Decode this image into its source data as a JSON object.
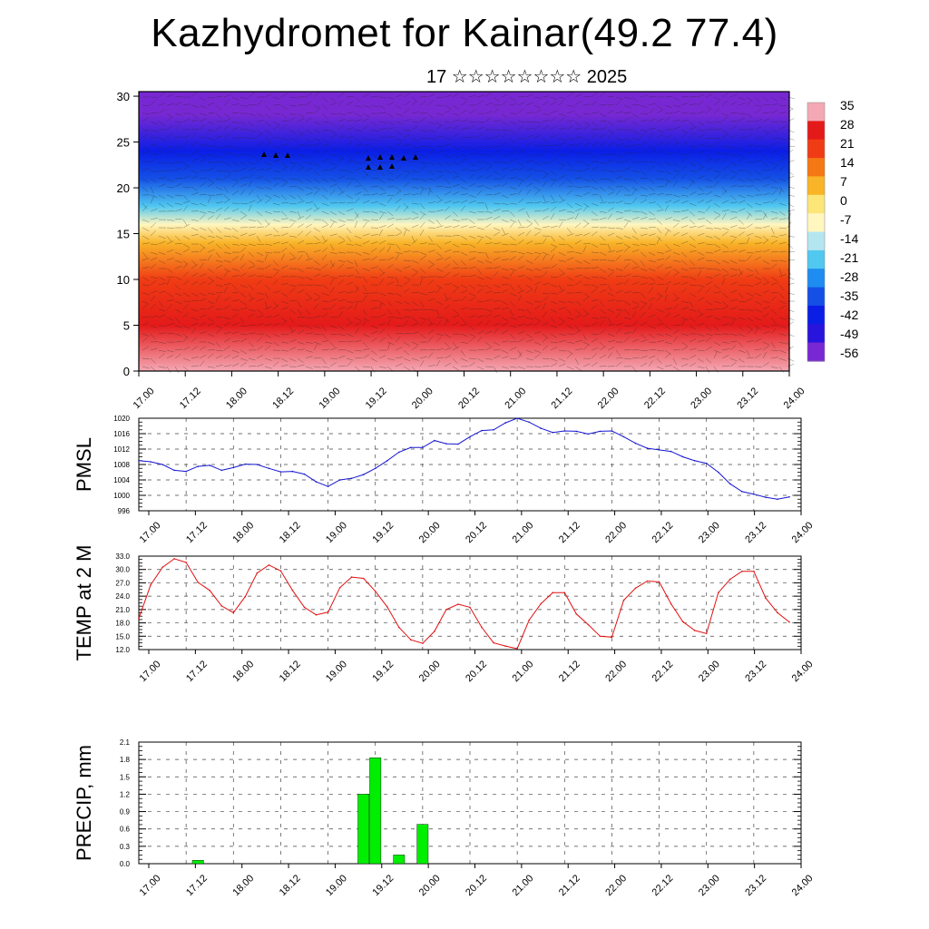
{
  "title": "Kazhydromet for Kainar(49.2 77.4)",
  "subtitle": "17 ☆☆☆☆☆☆☆☆ 2025",
  "colors": {
    "pmsl_line": "#1515d0",
    "temp_line": "#e01010",
    "precip_bar": "#00ee00"
  },
  "chart_data": [
    {
      "type": "heatmap",
      "title": "",
      "xlabel": "",
      "ylabel": "",
      "x_tick_labels": [
        "17.00",
        "17.12",
        "18.00",
        "18.12",
        "19.00",
        "19.12",
        "20.00",
        "20.12",
        "21.00",
        "21.12",
        "22.00",
        "22.12",
        "23.00",
        "23.12",
        "24.00"
      ],
      "y_ticks": [
        0,
        5,
        10,
        15,
        20,
        25,
        30
      ],
      "ylim": [
        0,
        30.5
      ],
      "colorbar_labels": [
        "35",
        "28",
        "21",
        "14",
        "7",
        "0",
        "-7",
        "-14",
        "-21",
        "-28",
        "-35",
        "-42",
        "-49",
        "-56"
      ],
      "colorbar_stops": [
        "#f4a8b4",
        "#e41a1a",
        "#f03c14",
        "#f57814",
        "#f9b428",
        "#fce678",
        "#fff6c0",
        "#b4e6f0",
        "#50c8f0",
        "#1e8cf0",
        "#1450e6",
        "#0a1ee6",
        "#2814dc",
        "#7828d2"
      ],
      "field_profile": [
        {
          "level": 0,
          "value": 32
        },
        {
          "level": 5,
          "value": 28
        },
        {
          "level": 10,
          "value": 20
        },
        {
          "level": 14,
          "value": 6
        },
        {
          "level": 16,
          "value": -8
        },
        {
          "level": 18,
          "value": -20
        },
        {
          "level": 21,
          "value": -35
        },
        {
          "level": 24,
          "value": -48
        },
        {
          "level": 28,
          "value": -58
        }
      ],
      "overlay": "wind barbs"
    },
    {
      "type": "line",
      "ylabel": "PMSL",
      "y_ticks": [
        "996",
        "1000",
        "1004",
        "1008",
        "1012",
        "1016",
        "1020"
      ],
      "ylim": [
        996,
        1020
      ],
      "x_tick_labels": [
        "17.00",
        "17.12",
        "18.00",
        "18.12",
        "19.00",
        "19.12",
        "20.00",
        "20.12",
        "21.00",
        "21.12",
        "22.00",
        "22.12",
        "23.00",
        "23.12",
        "24.00"
      ],
      "x_range": [
        0,
        168
      ],
      "series": [
        {
          "x": [
            0,
            3,
            6,
            9,
            12,
            15,
            18,
            21,
            24,
            27,
            30,
            33,
            36,
            39,
            42,
            45,
            48,
            51,
            54,
            57,
            60,
            63,
            66,
            69,
            72,
            75,
            78,
            81,
            84,
            87,
            90,
            93,
            96,
            99,
            102,
            105,
            108,
            111,
            114,
            117,
            120,
            123,
            126,
            129,
            132,
            135,
            138,
            141,
            144,
            147,
            150,
            153,
            156,
            159,
            162,
            165
          ],
          "values": [
            1009,
            1008.7,
            1008,
            1006.5,
            1006.2,
            1007.5,
            1007.8,
            1006.5,
            1007.2,
            1008.1,
            1008,
            1007,
            1006.1,
            1006.2,
            1005.5,
            1003.5,
            1002.3,
            1004,
            1004.4,
            1005.4,
            1007,
            1009,
            1011.2,
            1012.4,
            1012.4,
            1014.2,
            1013.4,
            1013.3,
            1015.2,
            1016.8,
            1017,
            1018.8,
            1020,
            1019,
            1017.4,
            1016.3,
            1016.7,
            1016.6,
            1015.9,
            1016.6,
            1016.7,
            1015.2,
            1013.5,
            1012.2,
            1011.8,
            1011.4,
            1010,
            1009,
            1008.3,
            1006,
            1003,
            1001,
            1000.3,
            999.5,
            999,
            999.6
          ]
        }
      ]
    },
    {
      "type": "line",
      "ylabel": "TEMP at 2 M",
      "y_ticks": [
        "12.0",
        "15.0",
        "18.0",
        "21.0",
        "24.0",
        "27.0",
        "30.0",
        "33.0"
      ],
      "ylim": [
        12,
        33
      ],
      "x_tick_labels": [
        "17.00",
        "17.12",
        "18.00",
        "18.12",
        "19.00",
        "19.12",
        "20.00",
        "20.12",
        "21.00",
        "21.12",
        "22.00",
        "22.12",
        "23.00",
        "23.12",
        "24.00"
      ],
      "x_range": [
        0,
        168
      ],
      "series": [
        {
          "x": [
            0,
            3,
            6,
            9,
            12,
            15,
            18,
            21,
            24,
            27,
            30,
            33,
            36,
            39,
            42,
            45,
            48,
            51,
            54,
            57,
            60,
            63,
            66,
            69,
            72,
            75,
            78,
            81,
            84,
            87,
            90,
            93,
            96,
            99,
            102,
            105,
            108,
            111,
            114,
            117,
            120,
            123,
            126,
            129,
            132,
            135,
            138,
            141,
            144,
            147,
            150,
            153,
            156,
            159,
            162,
            165
          ],
          "values": [
            19,
            26.5,
            30.5,
            32.4,
            31.6,
            27.1,
            25.3,
            21.8,
            20.3,
            23.9,
            29.2,
            31,
            29.7,
            25.3,
            21.5,
            19.8,
            20.4,
            25.9,
            28.3,
            28,
            25.1,
            21.6,
            17,
            14.2,
            13.4,
            16.1,
            21,
            22.2,
            21.5,
            17,
            13.5,
            12.8,
            12.2,
            18.6,
            22.3,
            24.8,
            24.8,
            20,
            17.6,
            15,
            14.8,
            23.1,
            25.8,
            27.4,
            27.2,
            22.3,
            18.3,
            16.3,
            15.6,
            24.8,
            27.8,
            29.6,
            29.6,
            23.6,
            20.3,
            18.2
          ]
        }
      ]
    },
    {
      "type": "bar",
      "ylabel": "PRECIP, mm",
      "y_ticks": [
        "0.0",
        "0.3",
        "0.6",
        "0.9",
        "1.2",
        "1.5",
        "1.8",
        "2.1"
      ],
      "ylim": [
        0,
        2.1
      ],
      "x_tick_labels": [
        "17.00",
        "17.12",
        "18.00",
        "18.12",
        "19.00",
        "19.12",
        "20.00",
        "20.12",
        "21.00",
        "21.12",
        "22.00",
        "22.12",
        "23.00",
        "23.12",
        "24.00"
      ],
      "x_range": [
        0,
        168
      ],
      "bars": [
        {
          "x": 15,
          "value": 0.06
        },
        {
          "x": 57,
          "value": 1.2
        },
        {
          "x": 60,
          "value": 1.83
        },
        {
          "x": 66,
          "value": 0.15
        },
        {
          "x": 72,
          "value": 0.68
        }
      ]
    }
  ]
}
